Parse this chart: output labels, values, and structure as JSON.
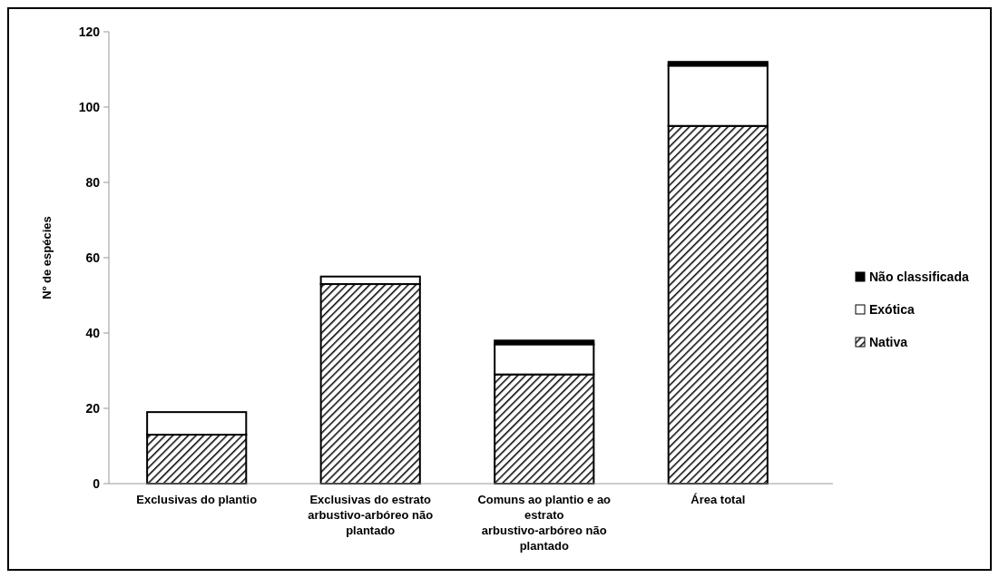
{
  "chart_data": {
    "type": "bar",
    "ylabel": "Nº de espécies",
    "categories": [
      "Exclusivas do plantio",
      "Exclusivas do estrato arbustivo-arbóreo não plantado",
      "Comuns ao plantio e ao estrato arbustivo-arbóreo não plantado",
      "Área total"
    ],
    "series": [
      {
        "name": "Nativa",
        "color": "#000000",
        "values": [
          13,
          53,
          29,
          95
        ]
      },
      {
        "name": "Exótica",
        "color": "#ffffff",
        "values": [
          6,
          2,
          8,
          16
        ]
      },
      {
        "name": "Não classificada",
        "color": "#000000",
        "values": [
          0,
          0,
          1,
          1
        ]
      }
    ],
    "stacked": true,
    "ylim": [
      0,
      120
    ],
    "yticks": [
      0,
      20,
      40,
      60,
      80,
      100,
      120
    ],
    "grid": false,
    "legend": "right"
  }
}
